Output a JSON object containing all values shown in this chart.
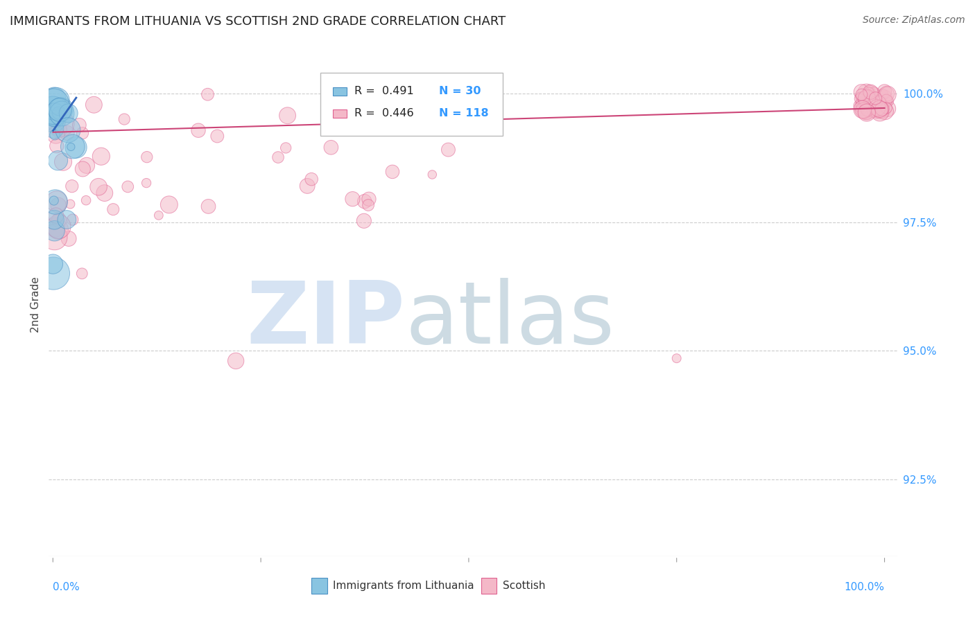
{
  "title": "IMMIGRANTS FROM LITHUANIA VS SCOTTISH 2ND GRADE CORRELATION CHART",
  "source": "Source: ZipAtlas.com",
  "ylabel": "2nd Grade",
  "ylim": [
    91.0,
    100.8
  ],
  "xlim": [
    -0.5,
    101.5
  ],
  "yticks": [
    100.0,
    97.5,
    95.0,
    92.5
  ],
  "ytick_labels": [
    "100.0%",
    "97.5%",
    "95.0%",
    "92.5%"
  ],
  "background_color": "#ffffff",
  "blue_color": "#89c4e1",
  "blue_edge_color": "#4a90c4",
  "pink_color": "#f4b8c8",
  "pink_edge_color": "#e06090",
  "blue_line_color": "#3366bb",
  "pink_line_color": "#cc4477",
  "grid_color": "#cccccc",
  "title_color": "#222222",
  "tick_color": "#3399ff",
  "axis_label_color": "#444444",
  "legend_R1": "R =  0.491",
  "legend_N1": "N = 30",
  "legend_R2": "R =  0.446",
  "legend_N2": "N = 118",
  "blue_trend_x0": 0.02,
  "blue_trend_x1": 2.8,
  "blue_trend_y0": 99.28,
  "blue_trend_y1": 99.92,
  "pink_trend_x0": 0.02,
  "pink_trend_x1": 100.0,
  "pink_trend_y0": 99.25,
  "pink_trend_y1": 99.72,
  "watermark_zip_color": "#ccddf0",
  "watermark_atlas_color": "#b8cdd8"
}
